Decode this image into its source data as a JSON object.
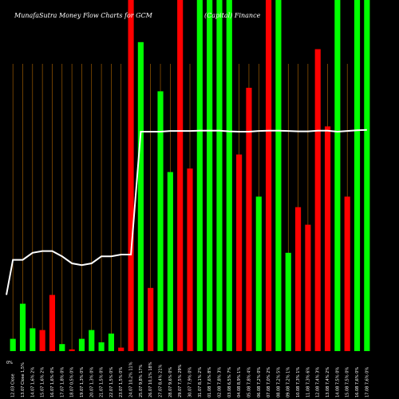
{
  "chart_data": {
    "type": "bar",
    "title_left": "MunafaSutra  Money Flow  Charts for GCM",
    "title_right": "(Capital) Finance",
    "ylim": [
      0,
      100
    ],
    "grid": true,
    "y_tick_label": "0%",
    "colors": {
      "up": "#00ff00",
      "down": "#ff0000",
      "line": "#ffffff",
      "grid": "#b86a00",
      "background": "#000000"
    },
    "bars": [
      {
        "value": 3.5,
        "dir": "up"
      },
      {
        "value": 13.5,
        "dir": "up"
      },
      {
        "value": 6.5,
        "dir": "up"
      },
      {
        "value": 6.0,
        "dir": "down"
      },
      {
        "value": 16.0,
        "dir": "down"
      },
      {
        "value": 2.0,
        "dir": "up"
      },
      {
        "value": 0.5,
        "dir": "down"
      },
      {
        "value": 3.5,
        "dir": "up"
      },
      {
        "value": 6.0,
        "dir": "up"
      },
      {
        "value": 2.5,
        "dir": "up"
      },
      {
        "value": 5.0,
        "dir": "up"
      },
      {
        "value": 1.0,
        "dir": "down"
      },
      {
        "value": 100,
        "dir": "down"
      },
      {
        "value": 88,
        "dir": "up"
      },
      {
        "value": 18,
        "dir": "down"
      },
      {
        "value": 74,
        "dir": "up"
      },
      {
        "value": 51,
        "dir": "up"
      },
      {
        "value": 100,
        "dir": "down"
      },
      {
        "value": 52,
        "dir": "down"
      },
      {
        "value": 100,
        "dir": "up"
      },
      {
        "value": 100,
        "dir": "up"
      },
      {
        "value": 100,
        "dir": "up"
      },
      {
        "value": 100,
        "dir": "up"
      },
      {
        "value": 56,
        "dir": "down"
      },
      {
        "value": 75,
        "dir": "down"
      },
      {
        "value": 44,
        "dir": "up"
      },
      {
        "value": 100,
        "dir": "down"
      },
      {
        "value": 100,
        "dir": "up"
      },
      {
        "value": 28,
        "dir": "up"
      },
      {
        "value": 41,
        "dir": "down"
      },
      {
        "value": 36,
        "dir": "down"
      },
      {
        "value": 86,
        "dir": "down"
      },
      {
        "value": 64,
        "dir": "down"
      },
      {
        "value": 100,
        "dir": "up"
      },
      {
        "value": 44,
        "dir": "down"
      },
      {
        "value": 100,
        "dir": "up"
      },
      {
        "value": 100,
        "dir": "up"
      }
    ],
    "line": [
      26,
      26,
      28,
      28.5,
      28.5,
      27,
      25,
      24.5,
      25,
      27,
      27,
      27.5,
      27.5,
      62.5,
      62.5,
      62.5,
      62.7,
      62.7,
      62.7,
      62.8,
      62.8,
      62.8,
      62.6,
      62.5,
      62.5,
      62.7,
      62.8,
      62.8,
      62.7,
      62.6,
      62.6,
      62.8,
      62.8,
      62.5,
      62.7,
      62.9,
      63
    ],
    "x_labels": [
      "12.03 Close",
      "13.07 Close 1,5%",
      "14.07 1,6% 2%",
      "15.07 1,6% 2%",
      "16.07 1,6% 0%",
      "17.07 1,8% 0%",
      "18.07 0,5% 0%",
      "19.07 1,3% 0%",
      "20.07 1,3% 0%",
      "21.07 1,5% 0%",
      "22.07 1,5% 0%",
      "23.07 1,5% 0%",
      "24.07 10,2% 11%",
      "25.07 9,8% 17%",
      "26.07 10,1% 18%",
      "27.07 8,4% 21%",
      "28.07 9,6% 0%",
      "29.07 7,5% 29%",
      "30.07 7,9% 0%",
      "31.07 8,1% 2%",
      "01.08 7,6% 8%",
      "02.08 7,8% 3%",
      "03.08 6,5% 7%",
      "04.08 8,9% 1%",
      "05.08 7,8% 4%",
      "06.08 7,2% 0%",
      "07.08 7,0% 2%",
      "08.08 7,2% 5%",
      "09.08 7,2% 1%",
      "10.08 7,3% 1%",
      "11.08 7,3% 6%",
      "12.08 7,4% 3%",
      "13.08 7,4% 2%",
      "14.08 7,5% 0%",
      "15.08 7,5% 0%",
      "16.08 7,6% 0%",
      "17.08 7,6% 0%"
    ]
  }
}
